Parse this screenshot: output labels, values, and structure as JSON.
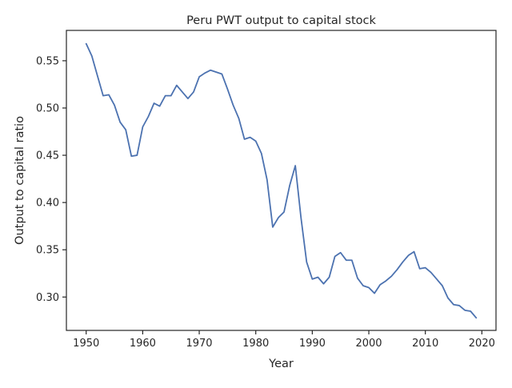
{
  "chart_data": {
    "type": "line",
    "title": "Peru PWT output to capital stock",
    "xlabel": "Year",
    "ylabel": "Output to capital ratio",
    "xlim": [
      1946.5,
      2022.5
    ],
    "ylim": [
      0.2647,
      0.5821
    ],
    "xticks": [
      1950,
      1960,
      1970,
      1980,
      1990,
      2000,
      2010,
      2020
    ],
    "yticks": [
      0.3,
      0.35,
      0.4,
      0.45,
      0.5,
      0.55
    ],
    "xtick_labels": [
      "1950",
      "1960",
      "1970",
      "1980",
      "1990",
      "2000",
      "2010",
      "2020"
    ],
    "ytick_labels": [
      "0.30",
      "0.35",
      "0.40",
      "0.45",
      "0.50",
      "0.55"
    ],
    "grid": false,
    "line_color": "#4c72b0",
    "series": [
      {
        "x": [
          1950,
          1951,
          1952,
          1953,
          1954,
          1955,
          1956,
          1957,
          1958,
          1959,
          1960,
          1961,
          1962,
          1963,
          1964,
          1965,
          1966,
          1967,
          1968,
          1969,
          1970,
          1971,
          1972,
          1973,
          1974,
          1975,
          1976,
          1977,
          1978,
          1979,
          1980,
          1981,
          1982,
          1983,
          1984,
          1985,
          1986,
          1987,
          1988,
          1989,
          1990,
          1991,
          1992,
          1993,
          1994,
          1995,
          1996,
          1997,
          1998,
          1999,
          2000,
          2001,
          2002,
          2003,
          2004,
          2005,
          2006,
          2007,
          2008,
          2009,
          2010,
          2011,
          2012,
          2013,
          2014,
          2015,
          2016,
          2017,
          2018,
          2019
        ],
        "values": [
          0.568,
          0.555,
          0.534,
          0.513,
          0.514,
          0.503,
          0.485,
          0.477,
          0.449,
          0.45,
          0.48,
          0.491,
          0.505,
          0.502,
          0.513,
          0.513,
          0.524,
          0.517,
          0.51,
          0.517,
          0.533,
          0.537,
          0.54,
          0.538,
          0.536,
          0.52,
          0.503,
          0.489,
          0.467,
          0.469,
          0.465,
          0.452,
          0.424,
          0.374,
          0.384,
          0.39,
          0.418,
          0.439,
          0.384,
          0.337,
          0.319,
          0.321,
          0.314,
          0.321,
          0.343,
          0.347,
          0.339,
          0.339,
          0.32,
          0.312,
          0.31,
          0.304,
          0.313,
          0.317,
          0.322,
          0.329,
          0.337,
          0.344,
          0.348,
          0.33,
          0.331,
          0.326,
          0.319,
          0.312,
          0.299,
          0.292,
          0.291,
          0.286,
          0.285,
          0.278
        ]
      }
    ]
  }
}
